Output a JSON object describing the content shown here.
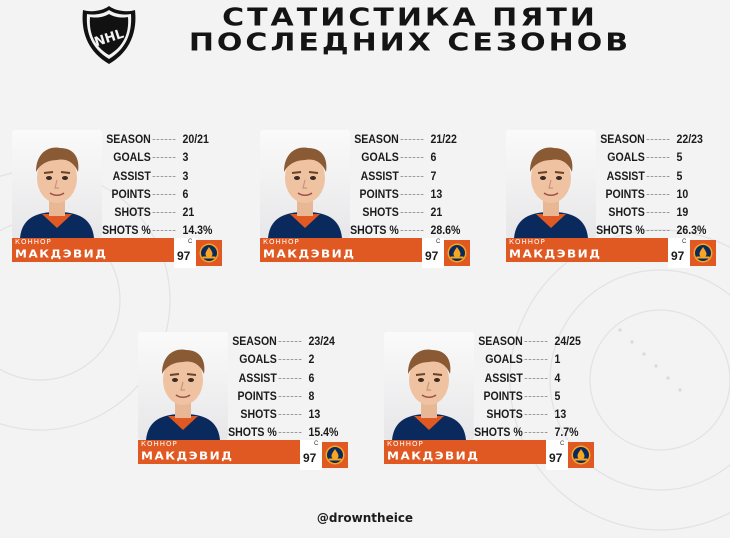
{
  "header": {
    "title_line1": "СТАТИСТИКА ПЯТИ",
    "title_line2": "ПОСЛЕДНИХ СЕЗОНОВ"
  },
  "labels": {
    "season": "SEASON",
    "goals": "GOALS",
    "assist": "ASSIST",
    "points": "POINTS",
    "shots": "SHOTS",
    "shots_pct": "SHOTS %"
  },
  "player": {
    "first_name": "КОННОР",
    "last_name": "МАКДЭВИД",
    "position": "C",
    "number": "97"
  },
  "cards": [
    {
      "season": "20/21",
      "goals": "3",
      "assist": "3",
      "points": "6",
      "shots": "21",
      "shots_pct": "14.3%"
    },
    {
      "season": "21/22",
      "goals": "6",
      "assist": "7",
      "points": "13",
      "shots": "21",
      "shots_pct": "28.6%"
    },
    {
      "season": "22/23",
      "goals": "5",
      "assist": "5",
      "points": "10",
      "shots": "19",
      "shots_pct": "26.3%"
    },
    {
      "season": "23/24",
      "goals": "2",
      "assist": "6",
      "points": "8",
      "shots": "13",
      "shots_pct": "15.4%"
    },
    {
      "season": "24/25",
      "goals": "1",
      "assist": "4",
      "points": "5",
      "shots": "13",
      "shots_pct": "7.7%"
    }
  ],
  "footer": {
    "handle": "@drowntheice"
  },
  "colors": {
    "accent": "#e05822",
    "team_blue": "#0a2a5e",
    "background": "#f3f3f4"
  },
  "icons": {
    "league_logo": "nhl-shield-icon",
    "team_logo": "oilers-logo-icon"
  }
}
